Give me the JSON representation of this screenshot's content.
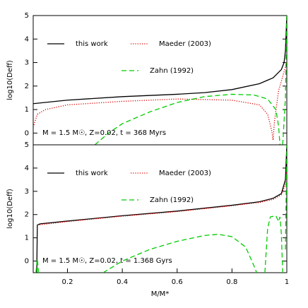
{
  "chart_data": [
    {
      "type": "line",
      "ylabel": "log10(Deff)",
      "annotation": "M = 1.5 M☉, Z=0.02, t = 368 Myrs",
      "xlim": [
        0.075,
        1.0
      ],
      "ylim": [
        -0.5,
        5
      ],
      "yticks": [
        0,
        1,
        2,
        3,
        4,
        5
      ],
      "series": [
        {
          "name": "this work",
          "color": "#000000",
          "linestyle": "solid",
          "x": [
            0.075,
            0.2,
            0.4,
            0.6,
            0.7,
            0.8,
            0.9,
            0.95,
            0.98,
            0.99,
            0.995,
            1.0
          ],
          "values": [
            1.25,
            1.4,
            1.55,
            1.65,
            1.72,
            1.85,
            2.1,
            2.35,
            2.7,
            3.0,
            3.5,
            5
          ]
        },
        {
          "name": "Maeder (2003)",
          "color": "#e00000",
          "linestyle": "dotted",
          "x": [
            0.075,
            0.09,
            0.12,
            0.2,
            0.4,
            0.6,
            0.8,
            0.9,
            0.93,
            0.945,
            0.95,
            0.955,
            0.97,
            0.99,
            1.0
          ],
          "values": [
            0.25,
            0.8,
            1.0,
            1.2,
            1.35,
            1.45,
            1.4,
            1.2,
            0.8,
            0.1,
            -0.3,
            0.5,
            1.8,
            2.6,
            3
          ]
        },
        {
          "name": "Zahn (1992)",
          "color": "#00cc00",
          "linestyle": "dashed",
          "x": [
            0.3,
            0.35,
            0.4,
            0.5,
            0.6,
            0.7,
            0.8,
            0.88,
            0.93,
            0.96,
            0.97,
            0.975,
            0.98,
            0.985,
            0.99,
            0.995,
            1.0
          ],
          "values": [
            -0.5,
            0.0,
            0.4,
            0.9,
            1.3,
            1.55,
            1.65,
            1.62,
            1.45,
            1.0,
            0.3,
            -0.5,
            null,
            -0.5,
            0.5,
            1.5,
            5
          ]
        }
      ]
    },
    {
      "type": "line",
      "xlabel": "M/M*",
      "ylabel": "log10(Deff)",
      "annotation": "M = 1.5 M☉, Z=0.02, t = 1.368 Gyrs",
      "xlim": [
        0.075,
        1.0
      ],
      "ylim": [
        -0.5,
        5
      ],
      "xticks": [
        0.2,
        0.4,
        0.6,
        0.8,
        1
      ],
      "yticks": [
        0,
        1,
        2,
        3,
        4,
        5
      ],
      "series": [
        {
          "name": "this work",
          "color": "#000000",
          "linestyle": "solid",
          "x": [
            0.088,
            0.09,
            0.1,
            0.2,
            0.4,
            0.6,
            0.8,
            0.9,
            0.95,
            0.98,
            0.995,
            1.0
          ],
          "values": [
            -0.5,
            1.55,
            1.6,
            1.72,
            1.95,
            2.15,
            2.4,
            2.55,
            2.7,
            2.9,
            3.5,
            5
          ]
        },
        {
          "name": "Maeder (2003)",
          "color": "#e00000",
          "linestyle": "dotted",
          "x": [
            0.09,
            0.2,
            0.4,
            0.6,
            0.8,
            0.9,
            0.95,
            0.98,
            0.995,
            1.0
          ],
          "values": [
            1.55,
            1.7,
            1.93,
            2.13,
            2.38,
            2.52,
            2.65,
            2.85,
            3.3,
            4
          ]
        },
        {
          "name": "Zahn (1992)",
          "color": "#00cc00",
          "linestyle": "dashed",
          "x": [
            0.085,
            0.09,
            0.095,
            0.2,
            0.33,
            0.4,
            0.5,
            0.6,
            0.7,
            0.75,
            0.8,
            0.85,
            0.88,
            0.89,
            0.9,
            0.92,
            0.93,
            0.94,
            0.96,
            0.97,
            0.975,
            0.98,
            0.985,
            0.99,
            0.995,
            1.0
          ],
          "values": [
            -0.5,
            0.1,
            -0.5,
            null,
            -0.5,
            0.0,
            0.5,
            0.85,
            1.1,
            1.15,
            1.05,
            0.6,
            -0.2,
            -0.5,
            null,
            -0.5,
            1.4,
            1.9,
            1.95,
            1.7,
            1.9,
            1.2,
            -0.5,
            null,
            0.5,
            5
          ]
        }
      ]
    }
  ]
}
